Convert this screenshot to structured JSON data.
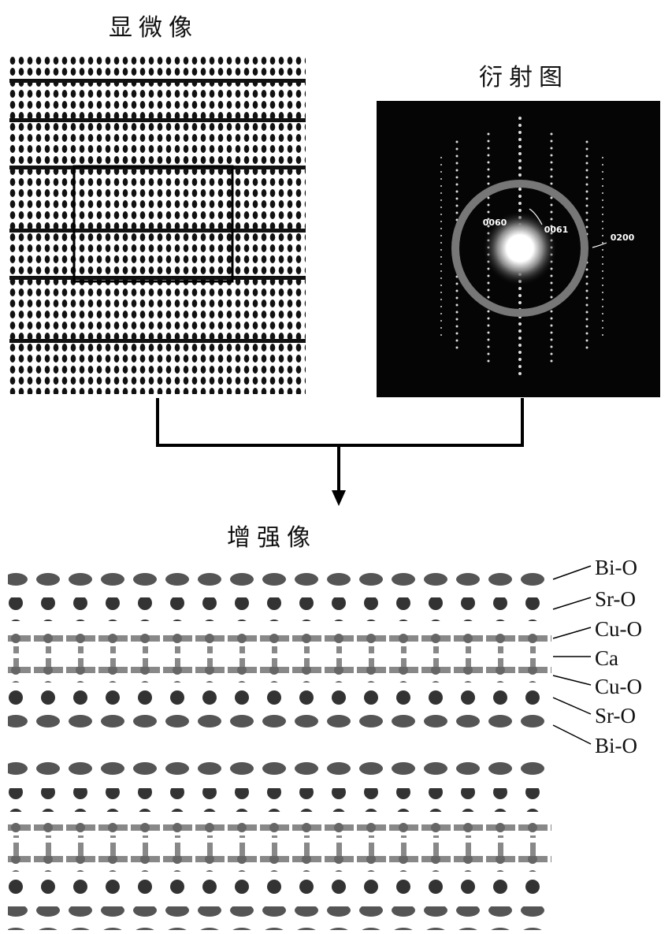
{
  "micrograph": {
    "title": "显微像"
  },
  "diffraction": {
    "title": "衍射图",
    "spots": [
      "0060",
      "0061",
      "0200"
    ]
  },
  "enhanced": {
    "title": "增强像",
    "layers": [
      "Bi-O",
      "Sr-O",
      "Cu-O",
      "Ca",
      "Cu-O",
      "Sr-O",
      "Bi-O"
    ]
  }
}
